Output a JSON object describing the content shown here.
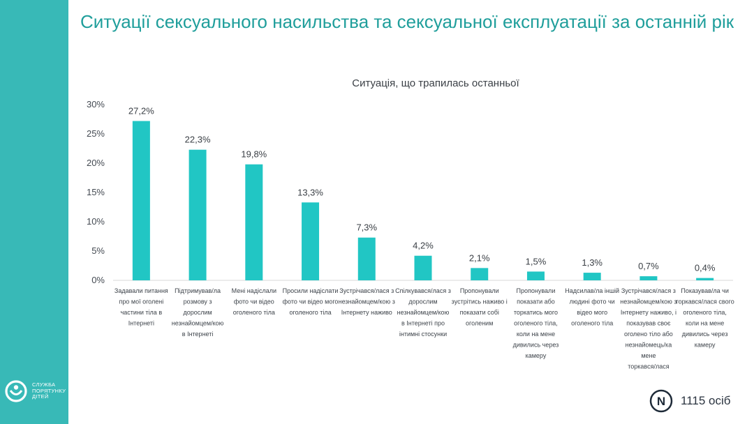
{
  "page": {
    "title": "Ситуації сексуального насильства та сексуальної експлуатації за останній рік"
  },
  "brand": {
    "logo_text": "СЛУЖБА\nПОРЯТУНКУ\nДІТЕЙ",
    "logo_icon": "family-circle-icon",
    "color_sidebar": "#38b9b7",
    "color_title": "#1f9e9b"
  },
  "footer": {
    "badge_letter": "N",
    "sample_label": "1115 осіб"
  },
  "chart_data": {
    "type": "bar",
    "title": "Ситуація, що трапилась останньої",
    "xlabel": "",
    "ylabel": "",
    "ylim": [
      0,
      30
    ],
    "yticks": [
      "0%",
      "5%",
      "10%",
      "15%",
      "20%",
      "25%",
      "30%"
    ],
    "grid": false,
    "legend": "none",
    "bar_color": "#21c6c4",
    "categories": [
      "Задавали питання про мої оголені частини тіла в Інтернеті",
      "Підтримував/ла розмову з дорослим незнайомцем/кою в Інтернеті",
      "Мені надіслали фото чи відео оголеного тіла",
      "Просили надіслати фото чи відео мого оголеного тіла",
      "Зустрічався/лася з незнайомцем/кою з Інтернету наживо",
      "Спілкувався/лася з дорослим незнайомцем/кою в Інтернеті про інтимні стосунки",
      "Пропонували зустрітись наживо і показати собі оголеним",
      "Пропонували показати або торкатись мого оголеного тіла, коли на мене дивились через камеру",
      "Надсилав/ла іншій людині фото чи відео мого оголеного тіла",
      "Зустрічався/лася з незнайомцем/кою з Інтернету наживо, і показував своє оголено тіло або незнайомець/ка мене торкався/лася",
      "Показував/ла чи торкався/лася свого оголеного тіла, коли на мене дивились через камеру"
    ],
    "category_lines": [
      [
        "Задавали питання",
        "про мої оголені",
        "частини тіла в",
        "Інтернеті"
      ],
      [
        "Підтримував/ла",
        "розмову з",
        "дорослим",
        "незнайомцем/кою",
        "в Інтернеті"
      ],
      [
        "Мені надіслали",
        "фото чи відео",
        "оголеного тіла"
      ],
      [
        "Просили надіслати",
        "фото чи відео мого",
        "оголеного тіла"
      ],
      [
        "Зустрічався/лася з",
        "незнайомцем/кою з",
        "Інтернету наживо"
      ],
      [
        "Спілкувався/лася з",
        "дорослим",
        "незнайомцем/кою",
        "в Інтернеті про",
        "інтимні стосунки"
      ],
      [
        "Пропонували",
        "зустрітись наживо і",
        "показати собі",
        "оголеним"
      ],
      [
        "Пропонували",
        "показати або",
        "торкатись мого",
        "оголеного тіла,",
        "коли на мене",
        "дивились через",
        "камеру"
      ],
      [
        "Надсилав/ла іншій",
        "людині фото чи",
        "відео мого",
        "оголеного тіла"
      ],
      [
        "Зустрічався/лася з",
        "незнайомцем/кою з",
        "Інтернету наживо, і",
        "показував своє",
        "оголено тіло або",
        "незнайомець/ка",
        "мене",
        "торкався/лася"
      ],
      [
        "Показував/ла чи",
        "торкався/лася свого",
        "оголеного тіла,",
        "коли на мене",
        "дивились через",
        "камеру"
      ]
    ],
    "values": [
      27.2,
      22.3,
      19.8,
      13.3,
      7.3,
      4.2,
      2.1,
      1.5,
      1.3,
      0.7,
      0.4
    ],
    "value_labels": [
      "27,2%",
      "22,3%",
      "19,8%",
      "13,3%",
      "7,3%",
      "4,2%",
      "2,1%",
      "1,5%",
      "1,3%",
      "0,7%",
      "0,4%"
    ]
  }
}
